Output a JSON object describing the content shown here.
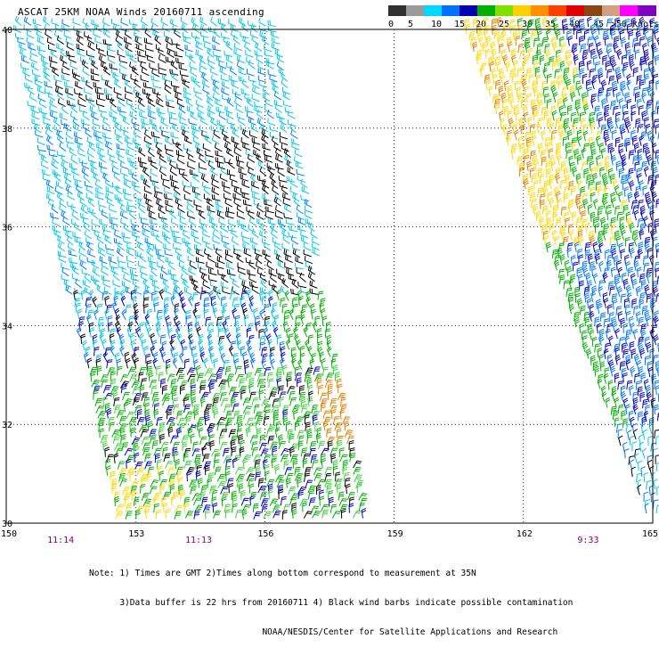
{
  "title": "ASCAT 25KM NOAA Winds 20160711 ascending",
  "legend": {
    "swatches": [
      {
        "color": "#303030"
      },
      {
        "color": "#9a9a9a"
      },
      {
        "color": "#00d8ff"
      },
      {
        "color": "#0070ff"
      },
      {
        "color": "#0000b0"
      },
      {
        "color": "#00b000"
      },
      {
        "color": "#80e000"
      },
      {
        "color": "#ffd000"
      },
      {
        "color": "#ff9000"
      },
      {
        "color": "#ff4000"
      },
      {
        "color": "#e00000"
      },
      {
        "color": "#8b4513"
      },
      {
        "color": "#d0a080"
      },
      {
        "color": "#ff00ff"
      },
      {
        "color": "#8000c0"
      }
    ],
    "labels": [
      "0",
      "5",
      "10",
      "15",
      "20",
      "25",
      "30",
      "35",
      "40",
      "45",
      ">50 knots"
    ]
  },
  "axes": {
    "lat_labels": [
      "40",
      "38",
      "36",
      "34",
      "32",
      "30"
    ],
    "lon_labels": [
      "150",
      "153",
      "156",
      "159",
      "162",
      "165"
    ],
    "time_labels": [
      {
        "text": "11:14",
        "lon": 151.2
      },
      {
        "text": "11:13",
        "lon": 154.4
      },
      {
        "text": "9:33",
        "lon": 163.5
      }
    ]
  },
  "palette": {
    "black": "#000000",
    "cyan": "#00c8e8",
    "blue_light": "#0078ff",
    "blue_dark": "#0000c0",
    "green": "#00b000",
    "green_light": "#40d040",
    "yellow": "#ffd800",
    "orange": "#e08000"
  },
  "notes": [
    "Note: 1) Times are GMT 2)Times along bottom correspond to measurement at 35N",
    "      3)Data buffer is 22 hrs from 20160711 4) Black wind barbs indicate possible contamination",
    "                                  NOAA/NESDIS/Center for Satellite Applications and Research"
  ]
}
